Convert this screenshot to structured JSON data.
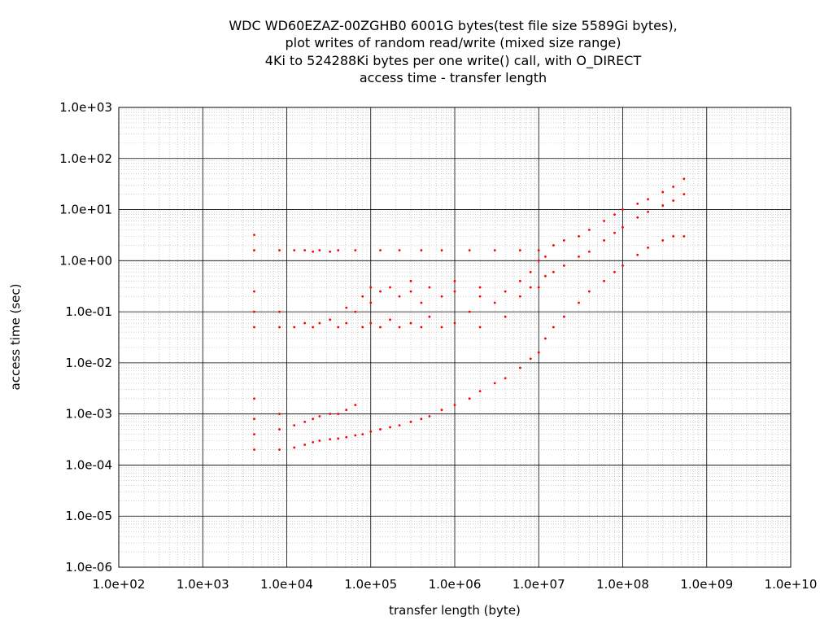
{
  "chart_data": {
    "type": "scatter",
    "title": [
      "WDC WD60EZAZ-00ZGHB0 6001G bytes(test file size 5589Gi bytes),",
      "plot writes of random read/write (mixed size range)",
      "4Ki to 524288Ki bytes per one write() call, with O_DIRECT",
      "access time - transfer length"
    ],
    "xlabel": "transfer length (byte)",
    "ylabel": "access time (sec)",
    "x_scale": "log",
    "y_scale": "log",
    "xlim": [
      100,
      10000000000
    ],
    "ylim": [
      1e-06,
      1000
    ],
    "x_tick_labels": [
      "1.0e+02",
      "1.0e+03",
      "1.0e+04",
      "1.0e+05",
      "1.0e+06",
      "1.0e+07",
      "1.0e+08",
      "1.0e+09",
      "1.0e+10"
    ],
    "y_tick_labels": [
      "1.0e+03",
      "1.0e+02",
      "1.0e+01",
      "1.0e+00",
      "1.0e-01",
      "1.0e-02",
      "1.0e-03",
      "1.0e-04",
      "1.0e-05",
      "1.0e-06"
    ],
    "grid": true,
    "series_color": "#ff0000",
    "series": [
      {
        "points": [
          [
            4096,
            0.0002
          ],
          [
            4096,
            0.0004
          ],
          [
            4096,
            0.0008
          ],
          [
            4096,
            0.002
          ],
          [
            4096,
            0.05
          ],
          [
            4096,
            0.1
          ],
          [
            4096,
            0.25
          ],
          [
            4096,
            1.6
          ],
          [
            4096,
            3.2
          ],
          [
            8192,
            0.0002
          ],
          [
            8192,
            0.0005
          ],
          [
            8192,
            0.001
          ],
          [
            8192,
            0.05
          ],
          [
            8192,
            0.1
          ],
          [
            8192,
            1.6
          ],
          [
            12288,
            0.00022
          ],
          [
            12288,
            0.0006
          ],
          [
            12288,
            0.05
          ],
          [
            12288,
            1.6
          ],
          [
            16384,
            0.00025
          ],
          [
            16384,
            0.0007
          ],
          [
            16384,
            0.06
          ],
          [
            16384,
            1.6
          ],
          [
            20480,
            0.00028
          ],
          [
            20480,
            0.0008
          ],
          [
            20480,
            0.05
          ],
          [
            20480,
            1.5
          ],
          [
            24576,
            0.0003
          ],
          [
            24576,
            0.0009
          ],
          [
            24576,
            0.06
          ],
          [
            24576,
            1.6
          ],
          [
            32768,
            0.00032
          ],
          [
            32768,
            0.001
          ],
          [
            32768,
            0.07
          ],
          [
            32768,
            1.5
          ],
          [
            40960,
            0.00033
          ],
          [
            40960,
            0.001
          ],
          [
            40960,
            0.05
          ],
          [
            40960,
            1.6
          ],
          [
            51200,
            0.00035
          ],
          [
            51200,
            0.0012
          ],
          [
            51200,
            0.06
          ],
          [
            51200,
            0.12
          ],
          [
            65536,
            0.00038
          ],
          [
            65536,
            0.0015
          ],
          [
            65536,
            0.1
          ],
          [
            65536,
            1.6
          ],
          [
            80000,
            0.0004
          ],
          [
            80000,
            0.05
          ],
          [
            80000,
            0.2
          ],
          [
            100000,
            0.00045
          ],
          [
            100000,
            0.06
          ],
          [
            100000,
            0.15
          ],
          [
            100000,
            0.3
          ],
          [
            130000,
            0.0005
          ],
          [
            130000,
            0.05
          ],
          [
            130000,
            0.25
          ],
          [
            130000,
            1.6
          ],
          [
            170000,
            0.00055
          ],
          [
            170000,
            0.07
          ],
          [
            170000,
            0.3
          ],
          [
            220000,
            0.0006
          ],
          [
            220000,
            0.05
          ],
          [
            220000,
            0.2
          ],
          [
            220000,
            1.6
          ],
          [
            300000,
            0.0007
          ],
          [
            300000,
            0.06
          ],
          [
            300000,
            0.25
          ],
          [
            300000,
            0.4
          ],
          [
            400000,
            0.0008
          ],
          [
            400000,
            0.05
          ],
          [
            400000,
            0.15
          ],
          [
            400000,
            1.6
          ],
          [
            500000,
            0.0009
          ],
          [
            500000,
            0.08
          ],
          [
            500000,
            0.3
          ],
          [
            700000,
            0.0012
          ],
          [
            700000,
            0.05
          ],
          [
            700000,
            0.2
          ],
          [
            700000,
            1.6
          ],
          [
            1000000,
            0.0015
          ],
          [
            1000000,
            0.06
          ],
          [
            1000000,
            0.25
          ],
          [
            1000000,
            0.4
          ],
          [
            1500000,
            0.002
          ],
          [
            1500000,
            0.1
          ],
          [
            1500000,
            1.6
          ],
          [
            2000000,
            0.0028
          ],
          [
            2000000,
            0.05
          ],
          [
            2000000,
            0.2
          ],
          [
            2000000,
            0.3
          ],
          [
            3000000,
            0.004
          ],
          [
            3000000,
            0.15
          ],
          [
            3000000,
            1.6
          ],
          [
            4000000,
            0.005
          ],
          [
            4000000,
            0.08
          ],
          [
            4000000,
            0.25
          ],
          [
            6000000,
            0.008
          ],
          [
            6000000,
            0.2
          ],
          [
            6000000,
            0.4
          ],
          [
            6000000,
            1.6
          ],
          [
            8000000,
            0.012
          ],
          [
            8000000,
            0.3
          ],
          [
            8000000,
            0.6
          ],
          [
            10000000,
            0.016
          ],
          [
            10000000,
            0.3
          ],
          [
            10000000,
            1.0
          ],
          [
            10000000,
            1.6
          ],
          [
            12000000,
            0.03
          ],
          [
            12000000,
            0.5
          ],
          [
            12000000,
            1.2
          ],
          [
            15000000,
            0.05
          ],
          [
            15000000,
            0.6
          ],
          [
            15000000,
            2.0
          ],
          [
            20000000,
            0.08
          ],
          [
            20000000,
            0.8
          ],
          [
            20000000,
            2.5
          ],
          [
            30000000,
            0.15
          ],
          [
            30000000,
            1.2
          ],
          [
            30000000,
            3.0
          ],
          [
            40000000,
            0.25
          ],
          [
            40000000,
            1.5
          ],
          [
            40000000,
            4.0
          ],
          [
            60000000,
            0.4
          ],
          [
            60000000,
            2.5
          ],
          [
            60000000,
            6.0
          ],
          [
            80000000,
            0.6
          ],
          [
            80000000,
            3.5
          ],
          [
            80000000,
            8.0
          ],
          [
            100000000,
            0.8
          ],
          [
            100000000,
            4.5
          ],
          [
            100000000,
            10.0
          ],
          [
            150000000,
            1.3
          ],
          [
            150000000,
            7.0
          ],
          [
            150000000,
            13.0
          ],
          [
            200000000,
            1.8
          ],
          [
            200000000,
            9.0
          ],
          [
            200000000,
            16.0
          ],
          [
            300000000,
            2.5
          ],
          [
            300000000,
            12.0
          ],
          [
            300000000,
            22.0
          ],
          [
            400000000,
            3.0
          ],
          [
            400000000,
            15.0
          ],
          [
            400000000,
            28.0
          ],
          [
            536870912,
            3.0
          ],
          [
            536870912,
            20.0
          ],
          [
            536870912,
            40.0
          ]
        ]
      }
    ]
  }
}
